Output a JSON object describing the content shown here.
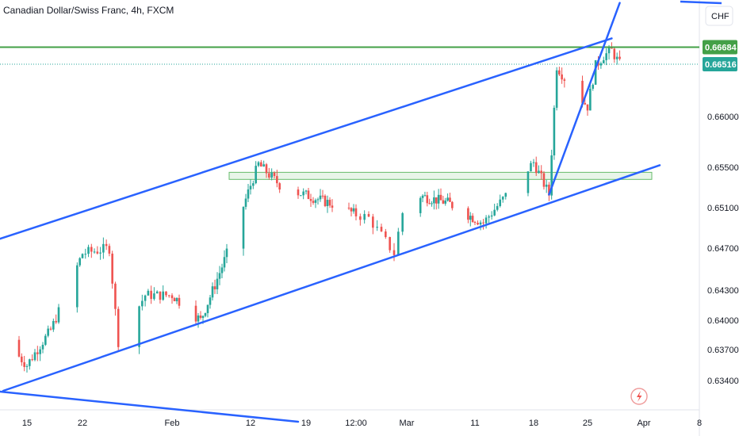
{
  "header": {
    "title": "Canadian Dollar/Swiss Franc, 4h, FXCM",
    "currency": "CHF"
  },
  "colors": {
    "up": "#26a69a",
    "down": "#ef5350",
    "trendline": "#2962ff",
    "resistance": "#43a047",
    "zone_fill": "#e8f5e9",
    "zone_border": "#66bb6a",
    "last_price_bg": "#26a69a",
    "resistance_bg": "#43a047"
  },
  "chart_data": {
    "type": "candlestick",
    "title": "Canadian Dollar/Swiss Franc, 4h, FXCM",
    "symbol": "CADCHF",
    "interval": "4h",
    "source": "FXCM",
    "xlabel": "",
    "ylabel": "",
    "ylim": [
      0.6318,
      0.6712
    ],
    "y_ticks": [
      "0.66000",
      "0.65500",
      "0.65100",
      "0.64700",
      "0.64300",
      "0.64000",
      "0.63700",
      "0.63400"
    ],
    "y_tick_values": [
      0.66,
      0.655,
      0.651,
      0.647,
      0.643,
      0.64,
      0.637,
      0.634
    ],
    "x_ticks": [
      "15",
      "22",
      "Feb",
      "12",
      "19",
      "12:00",
      "Mar",
      "11",
      "18",
      "25",
      "Apr",
      "8"
    ],
    "series": [
      {
        "type": "candlestick",
        "key_points": [
          {
            "date": "Jan 12",
            "close": 0.638
          },
          {
            "date": "Jan 15",
            "close": 0.6355
          },
          {
            "date": "Jan 18",
            "close": 0.639
          },
          {
            "date": "Jan 22",
            "close": 0.6465
          },
          {
            "date": "Jan 25",
            "close": 0.647
          },
          {
            "date": "Jan 26",
            "close": 0.6378
          },
          {
            "date": "Jan 29",
            "close": 0.6425
          },
          {
            "date": "Feb 1",
            "close": 0.6425
          },
          {
            "date": "Feb 5",
            "close": 0.64
          },
          {
            "date": "Feb 9",
            "close": 0.647
          },
          {
            "date": "Feb 13",
            "close": 0.6553
          },
          {
            "date": "Feb 16",
            "close": 0.653
          },
          {
            "date": "Feb 20",
            "close": 0.652
          },
          {
            "date": "Feb 23",
            "close": 0.6513
          },
          {
            "date": "Feb 27",
            "close": 0.65
          },
          {
            "date": "Feb 29",
            "close": 0.6465
          },
          {
            "date": "Mar 1",
            "close": 0.6525
          },
          {
            "date": "Mar 7",
            "close": 0.6515
          },
          {
            "date": "Mar 12",
            "close": 0.6495
          },
          {
            "date": "Mar 15",
            "close": 0.6525
          },
          {
            "date": "Mar 18",
            "close": 0.6555
          },
          {
            "date": "Mar 20",
            "close": 0.6523
          },
          {
            "date": "Mar 21",
            "close": 0.665
          },
          {
            "date": "Mar 22",
            "close": 0.6638
          },
          {
            "date": "Mar 25",
            "close": 0.661
          },
          {
            "date": "Mar 26",
            "close": 0.665
          },
          {
            "date": "Mar 27",
            "close": 0.666
          },
          {
            "date": "Mar 28",
            "close": 0.6665
          },
          {
            "date": "Mar 29",
            "close": 0.66516
          }
        ]
      }
    ],
    "horizontal_levels": [
      {
        "value": 0.66684,
        "label": "0.66684",
        "style": "solid",
        "color": "#43a047"
      },
      {
        "value": 0.66516,
        "label": "0.66516",
        "style": "dotted",
        "color": "#26a69a",
        "note": "last price"
      }
    ],
    "zones": [
      {
        "from_date": "Feb 9",
        "to_date": "Apr 2",
        "top": 0.6545,
        "bottom": 0.6538
      }
    ],
    "trendlines": [
      {
        "name": "channel-upper",
        "from": {
          "date": "Jan 8",
          "value": 0.647
        },
        "to": {
          "date": "Mar 28",
          "value": 0.6677
        }
      },
      {
        "name": "channel-lower",
        "from": {
          "date": "Jan 12",
          "value": 0.633
        },
        "to": {
          "date": "Apr 3",
          "value": 0.6552
        }
      },
      {
        "name": "wedge-line",
        "from": {
          "date": "Mar 20",
          "value": 0.6523
        },
        "to": {
          "date": "Mar 29",
          "value": 0.6712
        }
      },
      {
        "name": "descending-line",
        "from": {
          "date": "Jan 8",
          "value": 0.6332
        },
        "to": {
          "date": "Feb 18",
          "value": 0.63
        }
      }
    ],
    "grid": false,
    "legend": "none"
  }
}
